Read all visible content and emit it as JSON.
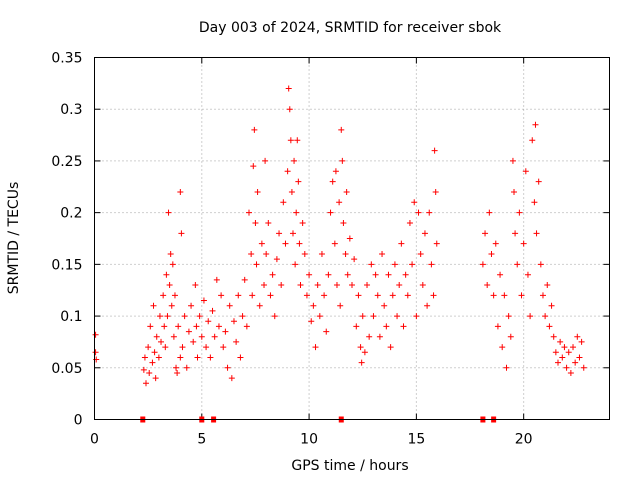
{
  "chart_data": {
    "type": "scatter",
    "title": "Day 003 of 2024, SRMTID for receiver sbok",
    "xlabel": "GPS time / hours",
    "ylabel": "SRMTID / TECUs",
    "xlim": [
      0,
      24
    ],
    "ylim": [
      0,
      0.35
    ],
    "xticks": [
      0,
      5,
      10,
      15,
      20
    ],
    "xtick_labels": [
      "0",
      "5",
      "10",
      "15",
      "20"
    ],
    "yticks": [
      0,
      0.05,
      0.1,
      0.15,
      0.2,
      0.25,
      0.3,
      0.35
    ],
    "ytick_labels": [
      "0",
      "0.05",
      "0.1",
      "0.15",
      "0.2",
      "0.25",
      "0.3",
      "0.35"
    ],
    "grid": true,
    "marker": "+",
    "series": [
      {
        "name": "SRMTID",
        "color": "#ff0000",
        "points": [
          [
            0.05,
            0.082
          ],
          [
            0.05,
            0.065
          ],
          [
            0.08,
            0.058
          ],
          [
            2.3,
            0.048
          ],
          [
            2.35,
            0.06
          ],
          [
            2.4,
            0.035
          ],
          [
            2.5,
            0.07
          ],
          [
            2.55,
            0.045
          ],
          [
            2.6,
            0.09
          ],
          [
            2.7,
            0.055
          ],
          [
            2.75,
            0.11
          ],
          [
            2.8,
            0.065
          ],
          [
            2.85,
            0.04
          ],
          [
            2.9,
            0.08
          ],
          [
            3.0,
            0.06
          ],
          [
            3.05,
            0.1
          ],
          [
            3.1,
            0.075
          ],
          [
            3.2,
            0.12
          ],
          [
            3.25,
            0.09
          ],
          [
            3.3,
            0.07
          ],
          [
            3.35,
            0.14
          ],
          [
            3.4,
            0.1
          ],
          [
            3.45,
            0.2
          ],
          [
            3.5,
            0.13
          ],
          [
            3.55,
            0.16
          ],
          [
            3.6,
            0.11
          ],
          [
            3.65,
            0.15
          ],
          [
            3.7,
            0.08
          ],
          [
            3.75,
            0.12
          ],
          [
            3.8,
            0.05
          ],
          [
            3.85,
            0.045
          ],
          [
            3.9,
            0.09
          ],
          [
            4.0,
            0.06
          ],
          [
            4.0,
            0.22
          ],
          [
            4.05,
            0.18
          ],
          [
            4.1,
            0.07
          ],
          [
            4.2,
            0.1
          ],
          [
            4.3,
            0.05
          ],
          [
            4.4,
            0.085
          ],
          [
            4.5,
            0.11
          ],
          [
            4.6,
            0.075
          ],
          [
            4.7,
            0.13
          ],
          [
            4.75,
            0.09
          ],
          [
            4.8,
            0.06
          ],
          [
            4.9,
            0.1
          ],
          [
            5.0,
            0.08
          ],
          [
            5.1,
            0.115
          ],
          [
            5.2,
            0.07
          ],
          [
            5.3,
            0.095
          ],
          [
            5.4,
            0.06
          ],
          [
            5.5,
            0.105
          ],
          [
            5.6,
            0.08
          ],
          [
            5.7,
            0.135
          ],
          [
            5.8,
            0.09
          ],
          [
            5.9,
            0.12
          ],
          [
            6.0,
            0.07
          ],
          [
            6.1,
            0.085
          ],
          [
            6.2,
            0.05
          ],
          [
            6.3,
            0.11
          ],
          [
            6.4,
            0.04
          ],
          [
            6.5,
            0.095
          ],
          [
            6.6,
            0.075
          ],
          [
            6.7,
            0.12
          ],
          [
            6.8,
            0.06
          ],
          [
            6.9,
            0.1
          ],
          [
            7.0,
            0.135
          ],
          [
            7.1,
            0.09
          ],
          [
            7.2,
            0.2
          ],
          [
            7.3,
            0.16
          ],
          [
            7.35,
            0.12
          ],
          [
            7.4,
            0.245
          ],
          [
            7.45,
            0.28
          ],
          [
            7.5,
            0.19
          ],
          [
            7.55,
            0.15
          ],
          [
            7.6,
            0.22
          ],
          [
            7.7,
            0.11
          ],
          [
            7.8,
            0.17
          ],
          [
            7.9,
            0.13
          ],
          [
            7.95,
            0.25
          ],
          [
            8.0,
            0.16
          ],
          [
            8.1,
            0.19
          ],
          [
            8.2,
            0.12
          ],
          [
            8.3,
            0.14
          ],
          [
            8.4,
            0.1
          ],
          [
            8.5,
            0.155
          ],
          [
            8.6,
            0.18
          ],
          [
            8.7,
            0.13
          ],
          [
            8.8,
            0.21
          ],
          [
            8.9,
            0.17
          ],
          [
            9.0,
            0.24
          ],
          [
            9.05,
            0.32
          ],
          [
            9.1,
            0.3
          ],
          [
            9.15,
            0.27
          ],
          [
            9.2,
            0.22
          ],
          [
            9.25,
            0.18
          ],
          [
            9.3,
            0.25
          ],
          [
            9.35,
            0.15
          ],
          [
            9.4,
            0.2
          ],
          [
            9.45,
            0.27
          ],
          [
            9.5,
            0.23
          ],
          [
            9.55,
            0.17
          ],
          [
            9.6,
            0.13
          ],
          [
            9.7,
            0.19
          ],
          [
            9.8,
            0.16
          ],
          [
            9.9,
            0.12
          ],
          [
            10.0,
            0.14
          ],
          [
            10.1,
            0.095
          ],
          [
            10.2,
            0.11
          ],
          [
            10.3,
            0.07
          ],
          [
            10.4,
            0.13
          ],
          [
            10.5,
            0.1
          ],
          [
            10.6,
            0.16
          ],
          [
            10.7,
            0.12
          ],
          [
            10.8,
            0.085
          ],
          [
            10.9,
            0.14
          ],
          [
            11.0,
            0.2
          ],
          [
            11.1,
            0.23
          ],
          [
            11.2,
            0.17
          ],
          [
            11.25,
            0.24
          ],
          [
            11.3,
            0.13
          ],
          [
            11.4,
            0.21
          ],
          [
            11.45,
            0.11
          ],
          [
            11.5,
            0.28
          ],
          [
            11.55,
            0.25
          ],
          [
            11.6,
            0.19
          ],
          [
            11.7,
            0.16
          ],
          [
            11.75,
            0.22
          ],
          [
            11.8,
            0.14
          ],
          [
            11.9,
            0.175
          ],
          [
            12.0,
            0.13
          ],
          [
            12.1,
            0.155
          ],
          [
            12.2,
            0.09
          ],
          [
            12.3,
            0.12
          ],
          [
            12.4,
            0.07
          ],
          [
            12.45,
            0.055
          ],
          [
            12.5,
            0.1
          ],
          [
            12.6,
            0.065
          ],
          [
            12.7,
            0.13
          ],
          [
            12.8,
            0.08
          ],
          [
            12.9,
            0.15
          ],
          [
            13.0,
            0.1
          ],
          [
            13.1,
            0.14
          ],
          [
            13.2,
            0.12
          ],
          [
            13.3,
            0.08
          ],
          [
            13.4,
            0.16
          ],
          [
            13.5,
            0.11
          ],
          [
            13.6,
            0.09
          ],
          [
            13.7,
            0.14
          ],
          [
            13.8,
            0.07
          ],
          [
            13.9,
            0.12
          ],
          [
            14.0,
            0.15
          ],
          [
            14.1,
            0.1
          ],
          [
            14.2,
            0.13
          ],
          [
            14.3,
            0.17
          ],
          [
            14.4,
            0.09
          ],
          [
            14.5,
            0.14
          ],
          [
            14.6,
            0.12
          ],
          [
            14.7,
            0.19
          ],
          [
            14.8,
            0.15
          ],
          [
            14.9,
            0.21
          ],
          [
            15.0,
            0.1
          ],
          [
            15.1,
            0.2
          ],
          [
            15.2,
            0.16
          ],
          [
            15.3,
            0.13
          ],
          [
            15.4,
            0.18
          ],
          [
            15.5,
            0.11
          ],
          [
            15.6,
            0.2
          ],
          [
            15.7,
            0.15
          ],
          [
            15.8,
            0.12
          ],
          [
            15.85,
            0.26
          ],
          [
            15.9,
            0.22
          ],
          [
            15.95,
            0.17
          ],
          [
            18.1,
            0.15
          ],
          [
            18.2,
            0.18
          ],
          [
            18.3,
            0.13
          ],
          [
            18.4,
            0.2
          ],
          [
            18.5,
            0.16
          ],
          [
            18.6,
            0.12
          ],
          [
            18.7,
            0.17
          ],
          [
            18.8,
            0.09
          ],
          [
            18.9,
            0.14
          ],
          [
            19.0,
            0.07
          ],
          [
            19.1,
            0.12
          ],
          [
            19.2,
            0.05
          ],
          [
            19.3,
            0.1
          ],
          [
            19.4,
            0.08
          ],
          [
            19.5,
            0.25
          ],
          [
            19.55,
            0.22
          ],
          [
            19.6,
            0.18
          ],
          [
            19.7,
            0.15
          ],
          [
            19.8,
            0.2
          ],
          [
            19.9,
            0.12
          ],
          [
            20.0,
            0.17
          ],
          [
            20.1,
            0.24
          ],
          [
            20.2,
            0.14
          ],
          [
            20.3,
            0.1
          ],
          [
            20.4,
            0.27
          ],
          [
            20.5,
            0.21
          ],
          [
            20.55,
            0.285
          ],
          [
            20.6,
            0.18
          ],
          [
            20.7,
            0.23
          ],
          [
            20.8,
            0.15
          ],
          [
            20.9,
            0.12
          ],
          [
            21.0,
            0.1
          ],
          [
            21.1,
            0.13
          ],
          [
            21.2,
            0.09
          ],
          [
            21.3,
            0.11
          ],
          [
            21.4,
            0.08
          ],
          [
            21.5,
            0.065
          ],
          [
            21.6,
            0.055
          ],
          [
            21.7,
            0.075
          ],
          [
            21.8,
            0.06
          ],
          [
            21.9,
            0.07
          ],
          [
            22.0,
            0.05
          ],
          [
            22.1,
            0.065
          ],
          [
            22.2,
            0.045
          ],
          [
            22.3,
            0.07
          ],
          [
            22.4,
            0.055
          ],
          [
            22.5,
            0.08
          ],
          [
            22.6,
            0.06
          ],
          [
            22.7,
            0.075
          ],
          [
            22.8,
            0.05
          ]
        ]
      }
    ],
    "baseline_markers_x": [
      2.25,
      5.0,
      5.55,
      11.5,
      18.1,
      18.6
    ]
  }
}
